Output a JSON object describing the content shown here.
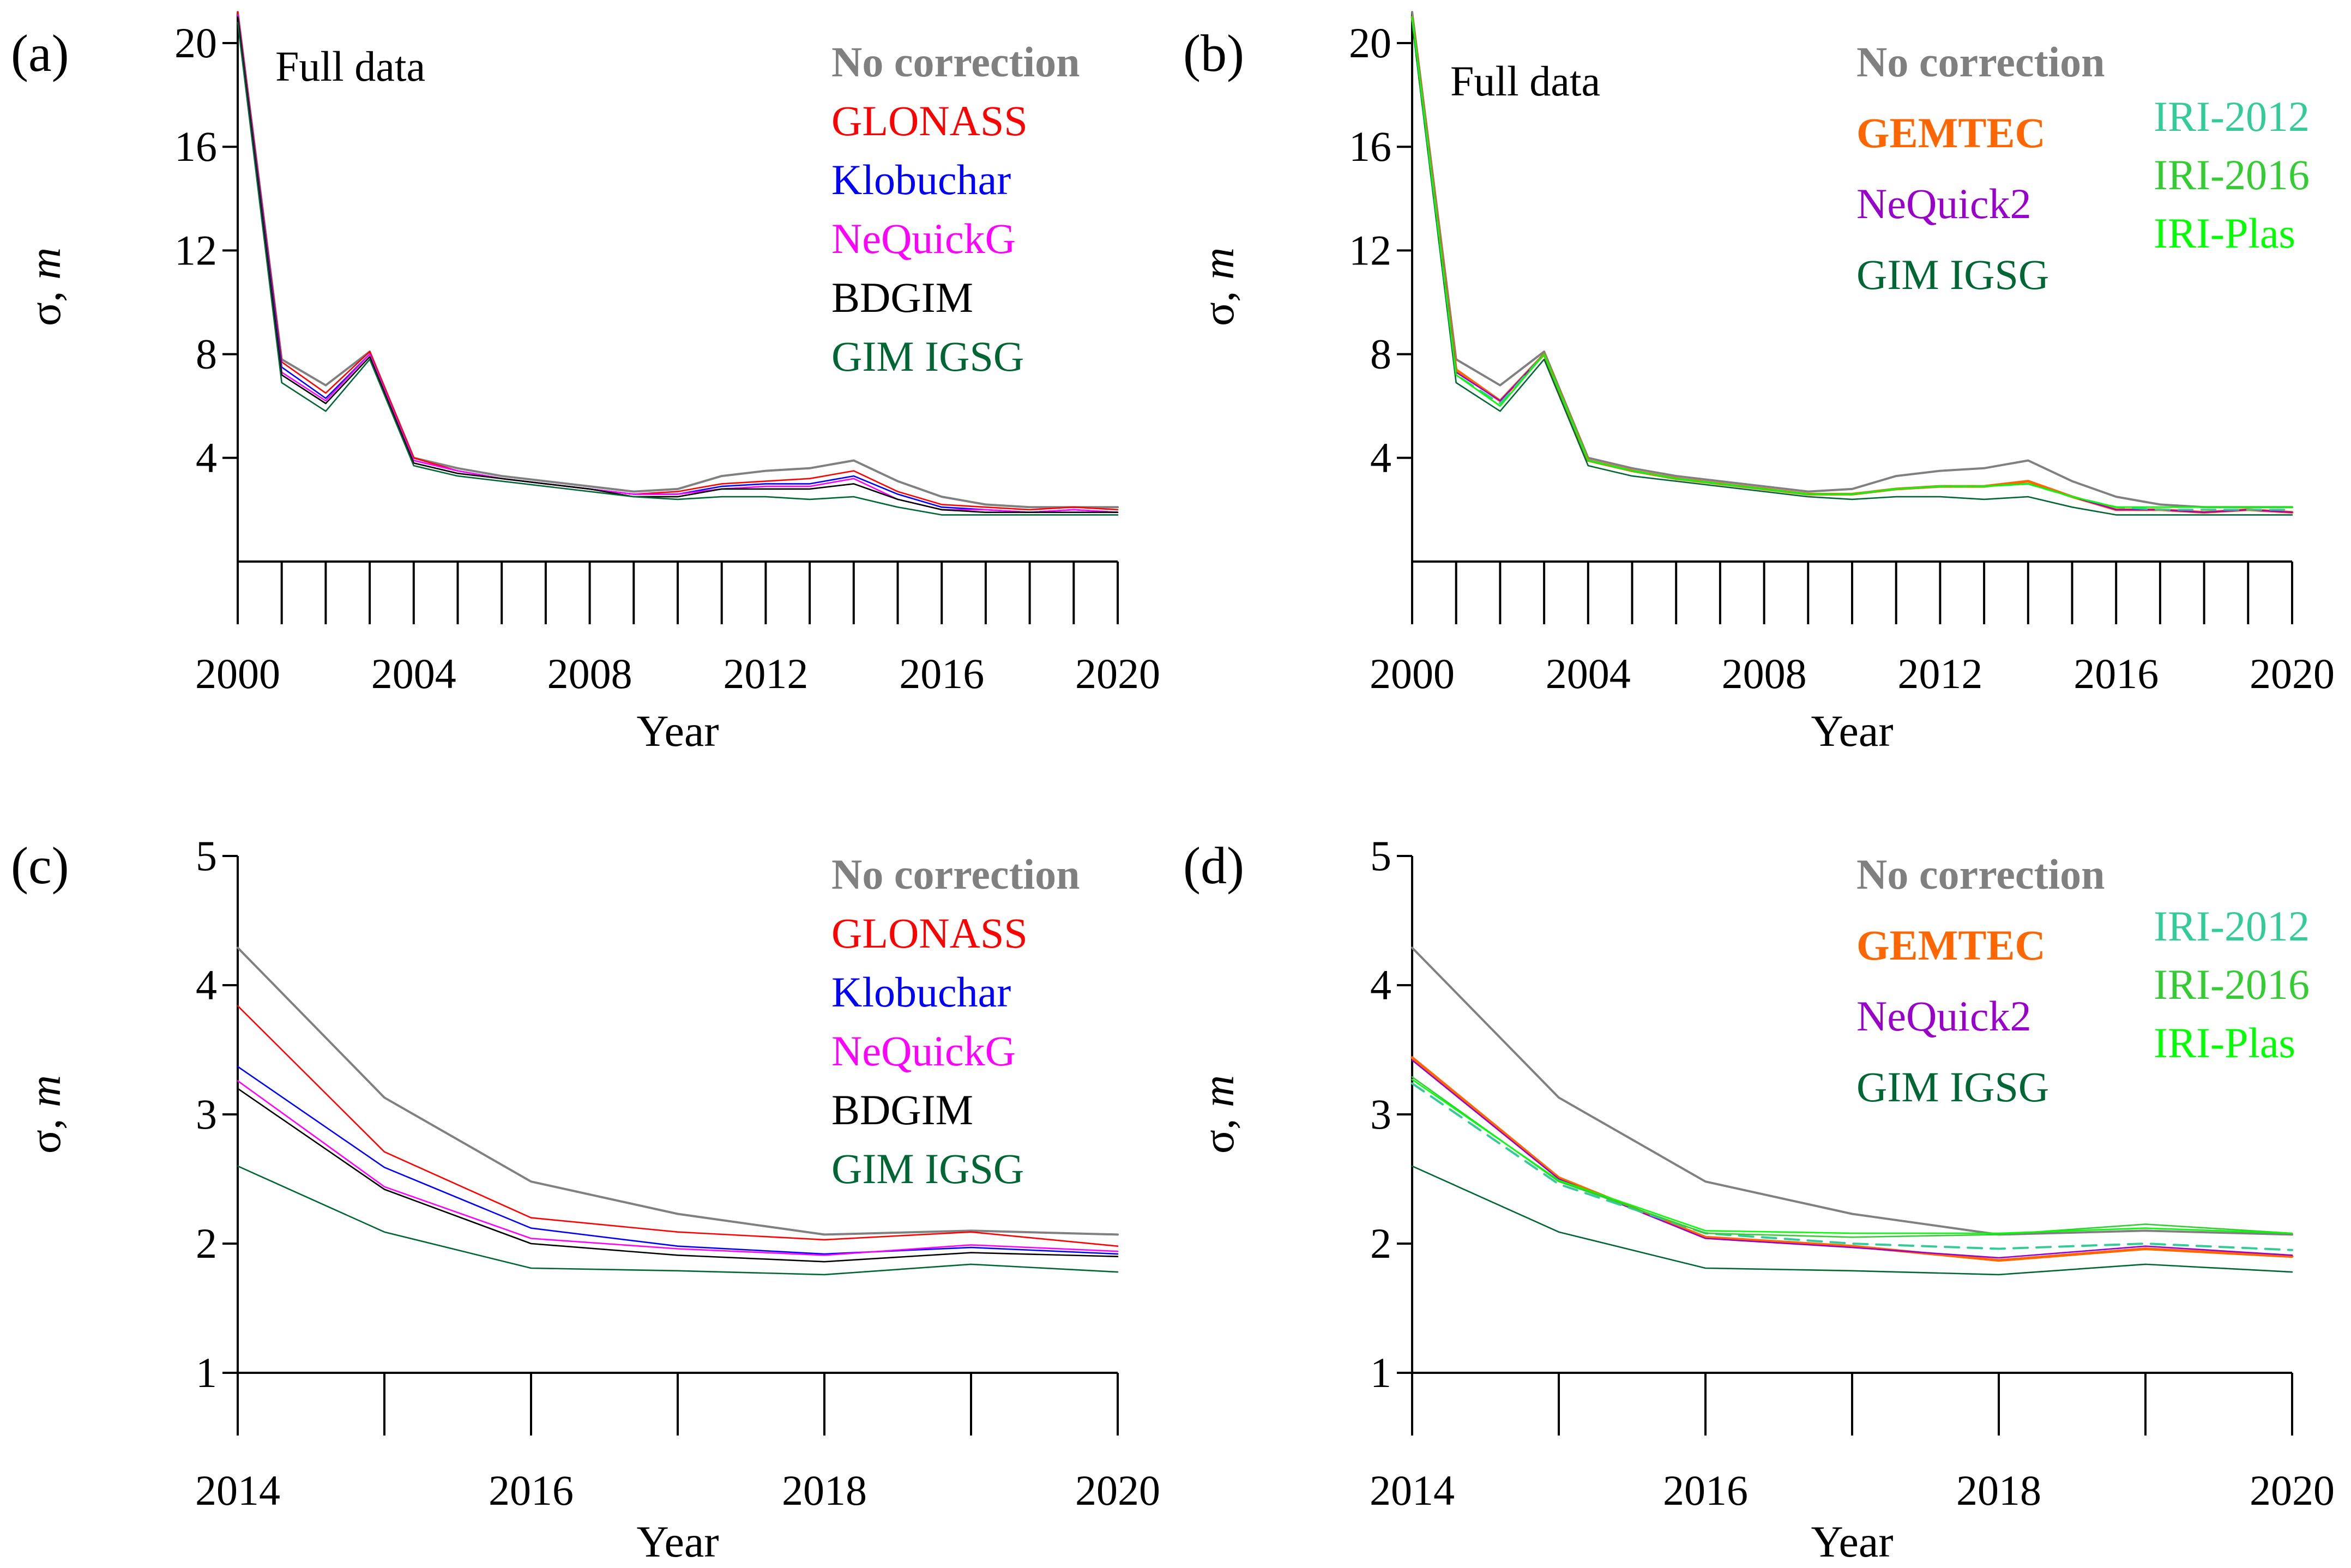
{
  "colors": {
    "no_correction": "#808080",
    "glonass": "#ff0000",
    "klobuchar": "#0000ff",
    "nequickg": "#ff00ff",
    "bdgim": "#000000",
    "gim_igsg": "#006633",
    "gemtec": "#ff6600",
    "nequick2": "#9900cc",
    "iri2012": "#33cc99",
    "iri2016": "#33cc33",
    "iri_plas": "#00ff00"
  },
  "chart_data": [
    {
      "type": "line",
      "panel_label": "(a)",
      "annotation": "Full data",
      "xlabel": "Year",
      "ylabel_symbol": "σ",
      "ylabel_sep": ", ",
      "ylabel_unit": "m",
      "xlim": [
        2000,
        2020
      ],
      "ylim": [
        0,
        21.2
      ],
      "x_ticks": [
        2000,
        2004,
        2008,
        2012,
        2016,
        2020
      ],
      "y_ticks": [
        4,
        8,
        12,
        16,
        20
      ],
      "x_minor_step": 1,
      "x": [
        2000,
        2001,
        2002,
        2003,
        2004,
        2005,
        2006,
        2007,
        2008,
        2009,
        2010,
        2011,
        2012,
        2013,
        2014,
        2015,
        2016,
        2017,
        2018,
        2019,
        2020
      ],
      "legend": [
        {
          "text": "No correction",
          "series": 0,
          "bold": true
        },
        {
          "text": "GLONASS",
          "series": 1
        },
        {
          "text": "Klobuchar",
          "series": 2
        },
        {
          "text": "NeQuickG",
          "series": 3
        },
        {
          "text": "BDGIM",
          "series": 4
        },
        {
          "text": "GIM IGSG",
          "series": 5
        }
      ],
      "series": [
        {
          "name": "No correction",
          "color_key": "no_correction",
          "width": 4,
          "values": [
            21.2,
            7.8,
            6.8,
            8.1,
            4.0,
            3.6,
            3.3,
            3.1,
            2.9,
            2.7,
            2.8,
            3.3,
            3.5,
            3.6,
            3.9,
            3.1,
            2.5,
            2.2,
            2.1,
            2.1,
            2.1
          ]
        },
        {
          "name": "GLONASS",
          "color_key": "glonass",
          "width": 2.6,
          "values": [
            21.2,
            7.7,
            6.5,
            8.1,
            4.0,
            3.5,
            3.2,
            3.0,
            2.8,
            2.6,
            2.7,
            3.0,
            3.1,
            3.2,
            3.5,
            2.7,
            2.2,
            2.1,
            2.0,
            2.1,
            2.0
          ]
        },
        {
          "name": "Klobuchar",
          "color_key": "klobuchar",
          "width": 2.6,
          "values": [
            21.1,
            7.5,
            6.3,
            8.0,
            3.9,
            3.5,
            3.2,
            3.0,
            2.8,
            2.6,
            2.6,
            2.9,
            3.0,
            3.0,
            3.3,
            2.6,
            2.1,
            2.0,
            1.9,
            2.0,
            1.9
          ]
        },
        {
          "name": "NeQuickG",
          "color_key": "nequickg",
          "width": 2.6,
          "values": [
            21.1,
            7.3,
            6.2,
            8.0,
            3.9,
            3.5,
            3.2,
            3.0,
            2.8,
            2.6,
            2.6,
            2.8,
            2.9,
            2.9,
            3.2,
            2.4,
            2.0,
            2.0,
            1.9,
            2.0,
            1.9
          ]
        },
        {
          "name": "BDGIM",
          "color_key": "bdgim",
          "width": 2.6,
          "values": [
            21.0,
            7.2,
            6.1,
            7.9,
            3.8,
            3.4,
            3.2,
            3.0,
            2.8,
            2.5,
            2.5,
            2.8,
            2.8,
            2.8,
            3.0,
            2.4,
            2.0,
            1.9,
            1.9,
            1.9,
            1.9
          ]
        },
        {
          "name": "GIM IGSG",
          "color_key": "gim_igsg",
          "width": 2.6,
          "values": [
            20.8,
            6.9,
            5.8,
            7.8,
            3.7,
            3.3,
            3.1,
            2.9,
            2.7,
            2.5,
            2.4,
            2.5,
            2.5,
            2.4,
            2.5,
            2.1,
            1.8,
            1.8,
            1.8,
            1.8,
            1.8
          ]
        }
      ]
    },
    {
      "type": "line",
      "panel_label": "(b)",
      "annotation": "Full data",
      "xlabel": "Year",
      "ylabel_symbol": "σ",
      "ylabel_sep": ", ",
      "ylabel_unit": "m",
      "xlim": [
        2000,
        2020
      ],
      "ylim": [
        0,
        21.2
      ],
      "x_ticks": [
        2000,
        2004,
        2008,
        2012,
        2016,
        2020
      ],
      "y_ticks": [
        4,
        8,
        12,
        16,
        20
      ],
      "x_minor_step": 1,
      "x": [
        2000,
        2001,
        2002,
        2003,
        2004,
        2005,
        2006,
        2007,
        2008,
        2009,
        2010,
        2011,
        2012,
        2013,
        2014,
        2015,
        2016,
        2017,
        2018,
        2019,
        2020
      ],
      "legend": [
        {
          "text": "No correction",
          "series": 0,
          "bold": true
        },
        {
          "text": "GEMTEC",
          "series": 1,
          "bold": true
        },
        {
          "text": "NeQuick2",
          "series": 2
        },
        {
          "text": "GIM IGSG",
          "series": 3
        },
        {
          "text": "IRI-2012",
          "series": 4
        },
        {
          "text": "IRI-2016",
          "series": 5
        },
        {
          "text": "IRI-Plas",
          "series": 6
        }
      ],
      "series": [
        {
          "name": "No correction",
          "color_key": "no_correction",
          "width": 4,
          "values": [
            21.2,
            7.8,
            6.8,
            8.1,
            4.0,
            3.6,
            3.3,
            3.1,
            2.9,
            2.7,
            2.8,
            3.3,
            3.5,
            3.6,
            3.9,
            3.1,
            2.5,
            2.2,
            2.1,
            2.1,
            2.1
          ]
        },
        {
          "name": "GEMTEC",
          "color_key": "gemtec",
          "width": 5,
          "values": [
            21.0,
            7.4,
            6.2,
            8.0,
            3.9,
            3.5,
            3.2,
            3.0,
            2.8,
            2.6,
            2.6,
            2.8,
            2.9,
            2.9,
            3.1,
            2.5,
            2.0,
            2.0,
            1.9,
            2.0,
            1.9
          ]
        },
        {
          "name": "NeQuick2",
          "color_key": "nequick2",
          "width": 2.6,
          "values": [
            21.0,
            7.3,
            6.2,
            8.0,
            3.9,
            3.5,
            3.2,
            3.0,
            2.8,
            2.6,
            2.6,
            2.8,
            2.9,
            2.9,
            3.0,
            2.5,
            2.0,
            2.0,
            1.9,
            2.0,
            1.9
          ]
        },
        {
          "name": "GIM IGSG",
          "color_key": "gim_igsg",
          "width": 2.6,
          "values": [
            20.8,
            6.9,
            5.8,
            7.8,
            3.7,
            3.3,
            3.1,
            2.9,
            2.7,
            2.5,
            2.4,
            2.5,
            2.5,
            2.4,
            2.5,
            2.1,
            1.8,
            1.8,
            1.8,
            1.8,
            1.8
          ]
        },
        {
          "name": "IRI-2012",
          "color_key": "iri2012",
          "width": 3.4,
          "dashed": true,
          "values": [
            21.0,
            7.2,
            6.1,
            8.0,
            3.9,
            3.5,
            3.2,
            3.0,
            2.8,
            2.6,
            2.6,
            2.8,
            2.9,
            2.9,
            3.0,
            2.5,
            2.1,
            2.0,
            2.0,
            2.0,
            2.0
          ]
        },
        {
          "name": "IRI-2016",
          "color_key": "iri2016",
          "width": 2.6,
          "values": [
            21.0,
            7.2,
            6.0,
            8.0,
            3.9,
            3.5,
            3.2,
            3.0,
            2.8,
            2.6,
            2.6,
            2.8,
            2.9,
            2.9,
            3.0,
            2.5,
            2.1,
            2.1,
            2.1,
            2.1,
            2.1
          ]
        },
        {
          "name": "IRI-Plas",
          "color_key": "iri_plas",
          "width": 2.6,
          "values": [
            21.0,
            7.2,
            6.0,
            8.0,
            3.9,
            3.5,
            3.2,
            3.0,
            2.8,
            2.6,
            2.6,
            2.8,
            2.9,
            2.9,
            3.0,
            2.5,
            2.1,
            2.1,
            2.1,
            2.1,
            2.1
          ]
        }
      ]
    },
    {
      "type": "line",
      "panel_label": "(c)",
      "xlabel": "Year",
      "ylabel_symbol": "σ",
      "ylabel_sep": ", ",
      "ylabel_unit": "m",
      "xlim": [
        2014,
        2020
      ],
      "ylim": [
        1,
        5
      ],
      "x_ticks": [
        2014,
        2016,
        2018,
        2020
      ],
      "y_ticks": [
        1,
        2,
        3,
        4,
        5
      ],
      "x_minor_step": 1,
      "x": [
        2014,
        2015,
        2016,
        2017,
        2018,
        2019,
        2020
      ],
      "legend": [
        {
          "text": "No correction",
          "series": 0,
          "bold": true
        },
        {
          "text": "GLONASS",
          "series": 1
        },
        {
          "text": "Klobuchar",
          "series": 2
        },
        {
          "text": "NeQuickG",
          "series": 3
        },
        {
          "text": "BDGIM",
          "series": 4
        },
        {
          "text": "GIM IGSG",
          "series": 5
        }
      ],
      "series": [
        {
          "name": "No correction",
          "color_key": "no_correction",
          "width": 4,
          "values": [
            4.29,
            3.13,
            2.48,
            2.23,
            2.07,
            2.1,
            2.07
          ]
        },
        {
          "name": "GLONASS",
          "color_key": "glonass",
          "width": 2.6,
          "values": [
            3.84,
            2.71,
            2.2,
            2.09,
            2.03,
            2.09,
            1.98
          ]
        },
        {
          "name": "Klobuchar",
          "color_key": "klobuchar",
          "width": 2.6,
          "values": [
            3.37,
            2.59,
            2.12,
            1.98,
            1.92,
            1.97,
            1.92
          ]
        },
        {
          "name": "NeQuickG",
          "color_key": "nequickg",
          "width": 2.6,
          "values": [
            3.26,
            2.44,
            2.04,
            1.96,
            1.91,
            1.99,
            1.94
          ]
        },
        {
          "name": "BDGIM",
          "color_key": "bdgim",
          "width": 2.6,
          "values": [
            3.2,
            2.42,
            2.0,
            1.91,
            1.86,
            1.93,
            1.9
          ]
        },
        {
          "name": "GIM IGSG",
          "color_key": "gim_igsg",
          "width": 2.6,
          "values": [
            2.6,
            2.09,
            1.81,
            1.79,
            1.76,
            1.84,
            1.78
          ]
        }
      ]
    },
    {
      "type": "line",
      "panel_label": "(d)",
      "xlabel": "Year",
      "ylabel_symbol": "σ",
      "ylabel_sep": ", ",
      "ylabel_unit": "m",
      "xlim": [
        2014,
        2020
      ],
      "ylim": [
        1,
        5
      ],
      "x_ticks": [
        2014,
        2016,
        2018,
        2020
      ],
      "y_ticks": [
        1,
        2,
        3,
        4,
        5
      ],
      "x_minor_step": 1,
      "x": [
        2014,
        2015,
        2016,
        2017,
        2018,
        2019,
        2020
      ],
      "legend": [
        {
          "text": "No correction",
          "series": 0,
          "bold": true
        },
        {
          "text": "GEMTEC",
          "series": 1,
          "bold": true
        },
        {
          "text": "NeQuick2",
          "series": 2
        },
        {
          "text": "GIM IGSG",
          "series": 3
        },
        {
          "text": "IRI-2012",
          "series": 4
        },
        {
          "text": "IRI-2016",
          "series": 5
        },
        {
          "text": "IRI-Plas",
          "series": 6
        }
      ],
      "series": [
        {
          "name": "No correction",
          "color_key": "no_correction",
          "width": 4,
          "values": [
            4.29,
            3.13,
            2.48,
            2.23,
            2.07,
            2.1,
            2.07
          ]
        },
        {
          "name": "GEMTEC",
          "color_key": "gemtec",
          "width": 5,
          "values": [
            3.44,
            2.51,
            2.05,
            1.98,
            1.87,
            1.96,
            1.9
          ]
        },
        {
          "name": "NeQuick2",
          "color_key": "nequick2",
          "width": 2.6,
          "values": [
            3.42,
            2.5,
            2.04,
            1.97,
            1.89,
            1.98,
            1.91
          ]
        },
        {
          "name": "GIM IGSG",
          "color_key": "gim_igsg",
          "width": 2.6,
          "values": [
            2.6,
            2.09,
            1.81,
            1.79,
            1.76,
            1.84,
            1.78
          ]
        },
        {
          "name": "IRI-2012",
          "color_key": "iri2012",
          "width": 4,
          "dashed": true,
          "values": [
            3.24,
            2.46,
            2.08,
            2.0,
            1.96,
            2.0,
            1.95
          ]
        },
        {
          "name": "IRI-2016",
          "color_key": "iri2016",
          "width": 2.6,
          "values": [
            3.29,
            2.48,
            2.08,
            2.05,
            2.07,
            2.15,
            2.08
          ]
        },
        {
          "name": "IRI-Plas",
          "color_key": "iri_plas",
          "width": 2.6,
          "values": [
            3.27,
            2.49,
            2.1,
            2.08,
            2.08,
            2.12,
            2.08
          ]
        }
      ]
    }
  ]
}
